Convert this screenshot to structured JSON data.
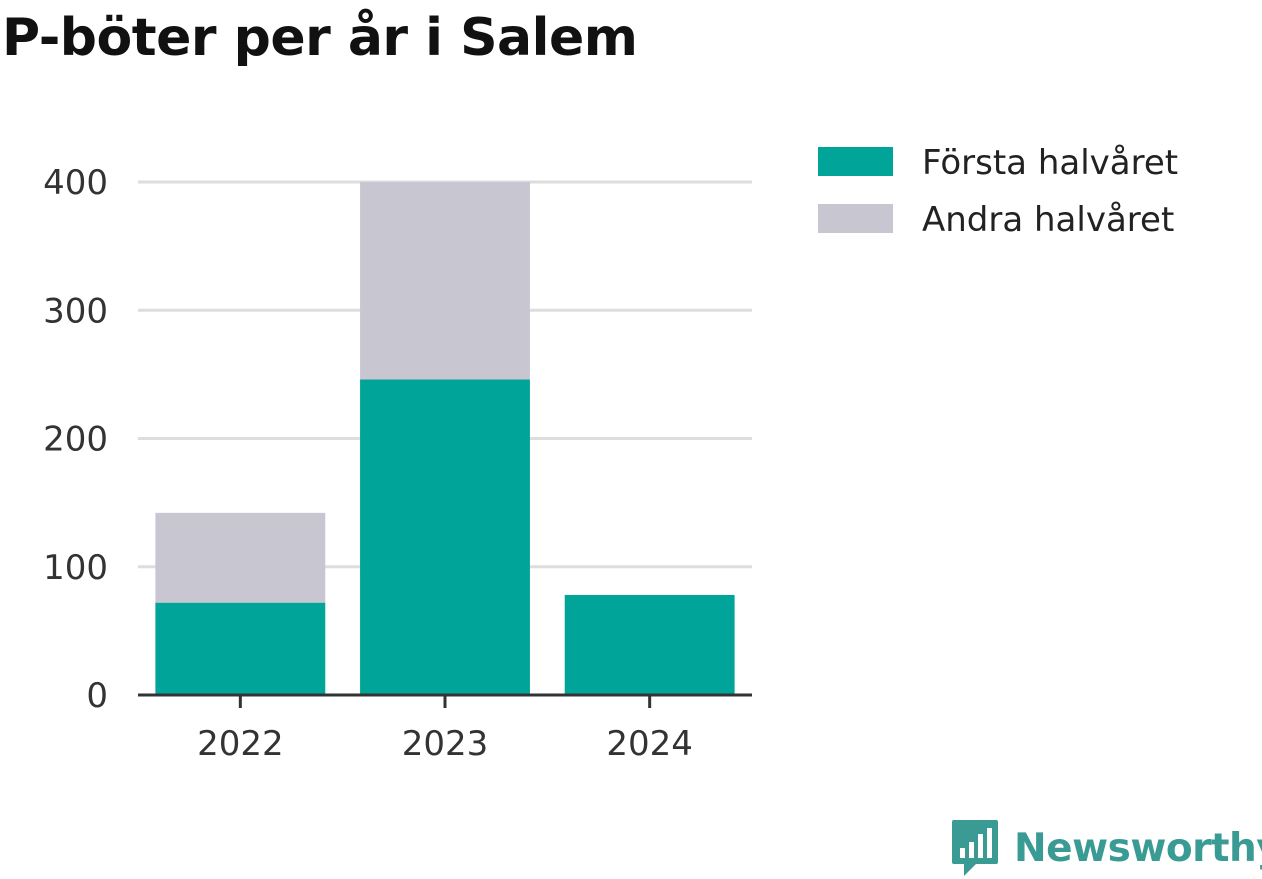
{
  "title": "P-böter per år i Salem",
  "brand": "Newsworthy",
  "colors": {
    "first_half": "#00a499",
    "second_half": "#c7c6d1",
    "grid": "#dddddd",
    "axis": "#333333",
    "brand": "#3a9b94"
  },
  "chart_data": {
    "type": "bar",
    "stacked": true,
    "title": "P-böter per år i Salem",
    "xlabel": "",
    "ylabel": "",
    "categories": [
      "2022",
      "2023",
      "2024"
    ],
    "series": [
      {
        "name": "Första halvåret",
        "values": [
          72,
          246,
          78
        ]
      },
      {
        "name": "Andra halvåret",
        "values": [
          70,
          154,
          0
        ]
      }
    ],
    "ylim": [
      0,
      400
    ],
    "yticks": [
      0,
      100,
      200,
      300,
      400
    ],
    "grid": true,
    "legend_position": "right"
  }
}
